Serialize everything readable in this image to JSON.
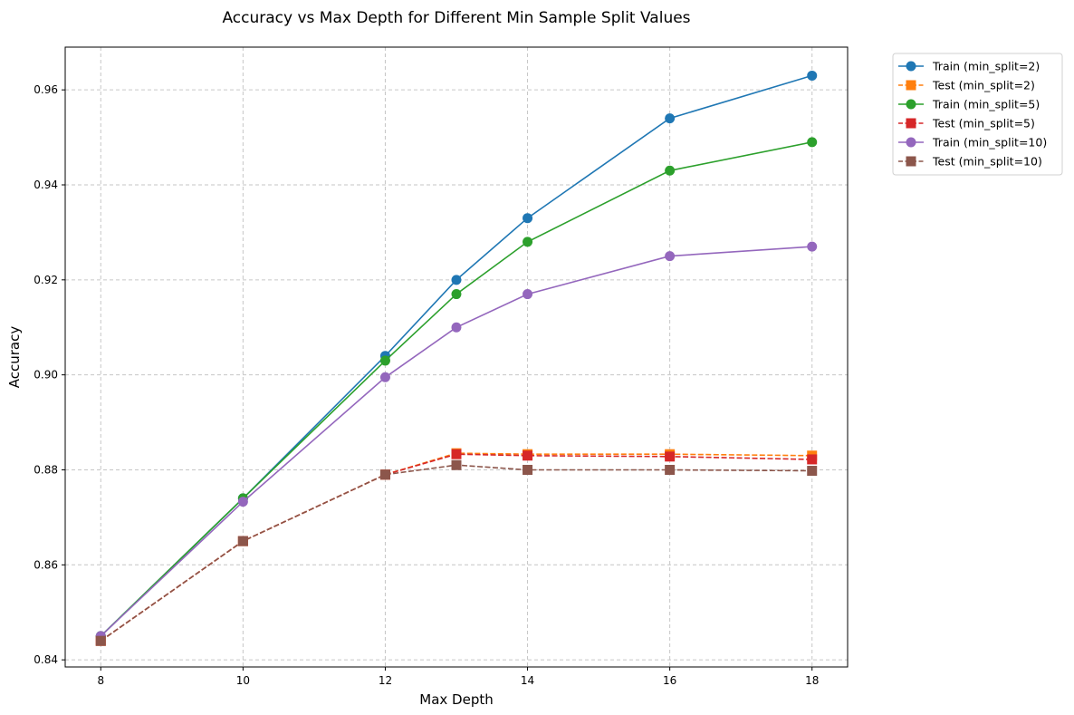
{
  "chart_data": {
    "type": "line",
    "title": "Accuracy vs Max Depth for Different Min Sample Split Values",
    "xlabel": "Max Depth",
    "ylabel": "Accuracy",
    "x": [
      8,
      10,
      12,
      13,
      14,
      16,
      18
    ],
    "xticks": [
      8,
      10,
      12,
      14,
      16,
      18
    ],
    "yticks": [
      0.84,
      0.86,
      0.88,
      0.9,
      0.92,
      0.94,
      0.96
    ],
    "xlim": [
      7.5,
      18.5
    ],
    "ylim": [
      0.8385,
      0.969
    ],
    "grid": true,
    "legend_position": "outside-top-right",
    "series": [
      {
        "name": "Train (min_split=2)",
        "color": "#1f77b4",
        "marker": "circle",
        "linestyle": "solid",
        "values": [
          0.845,
          0.874,
          0.904,
          0.92,
          0.933,
          0.954,
          0.963
        ]
      },
      {
        "name": "Test (min_split=2)",
        "color": "#ff7f0e",
        "marker": "square",
        "linestyle": "dashed",
        "values": [
          0.844,
          0.865,
          0.879,
          0.8835,
          0.8833,
          0.8833,
          0.883
        ]
      },
      {
        "name": "Train (min_split=5)",
        "color": "#2ca02c",
        "marker": "circle",
        "linestyle": "solid",
        "values": [
          0.845,
          0.874,
          0.903,
          0.917,
          0.928,
          0.943,
          0.949
        ]
      },
      {
        "name": "Test (min_split=5)",
        "color": "#d62728",
        "marker": "square",
        "linestyle": "dashed",
        "values": [
          0.844,
          0.865,
          0.879,
          0.8833,
          0.883,
          0.8828,
          0.8822
        ]
      },
      {
        "name": "Train (min_split=10)",
        "color": "#9467bd",
        "marker": "circle",
        "linestyle": "solid",
        "values": [
          0.845,
          0.8733,
          0.8995,
          0.91,
          0.917,
          0.925,
          0.927
        ]
      },
      {
        "name": "Test (min_split=10)",
        "color": "#8c564b",
        "marker": "square",
        "linestyle": "dashed",
        "values": [
          0.844,
          0.865,
          0.879,
          0.881,
          0.88,
          0.88,
          0.8798
        ]
      }
    ]
  }
}
